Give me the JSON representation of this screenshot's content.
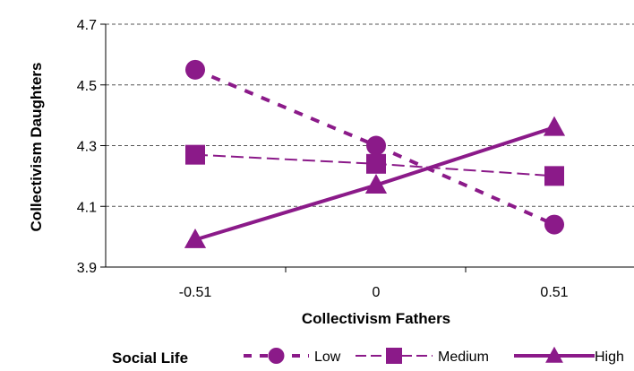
{
  "chart_data": {
    "type": "line",
    "xlabel": "Collectivism Fathers",
    "ylabel": "Collectivism Daughters",
    "x": [
      -0.51,
      0,
      0.51
    ],
    "x_tick_labels": [
      "-0.51",
      "0",
      "0.51"
    ],
    "ylim": [
      3.9,
      4.7
    ],
    "y_ticks": [
      3.9,
      4.1,
      4.3,
      4.5,
      4.7
    ],
    "y_tick_labels": [
      "3.9",
      "4.1",
      "4.3",
      "4.5",
      "4.7"
    ],
    "grid": true,
    "series": [
      {
        "name": "Low",
        "values": [
          4.55,
          4.3,
          4.04
        ],
        "marker": "circle",
        "line": "dotted-bold"
      },
      {
        "name": "Medium",
        "values": [
          4.27,
          4.24,
          4.2
        ],
        "marker": "square",
        "line": "dashed"
      },
      {
        "name": "High",
        "values": [
          3.99,
          4.17,
          4.36
        ],
        "marker": "triangle",
        "line": "solid"
      }
    ],
    "legend": {
      "title": "Social Life",
      "position": "bottom"
    },
    "colors": {
      "series": "#8B1A89",
      "grid": "#555555",
      "axis": "#000000"
    }
  }
}
